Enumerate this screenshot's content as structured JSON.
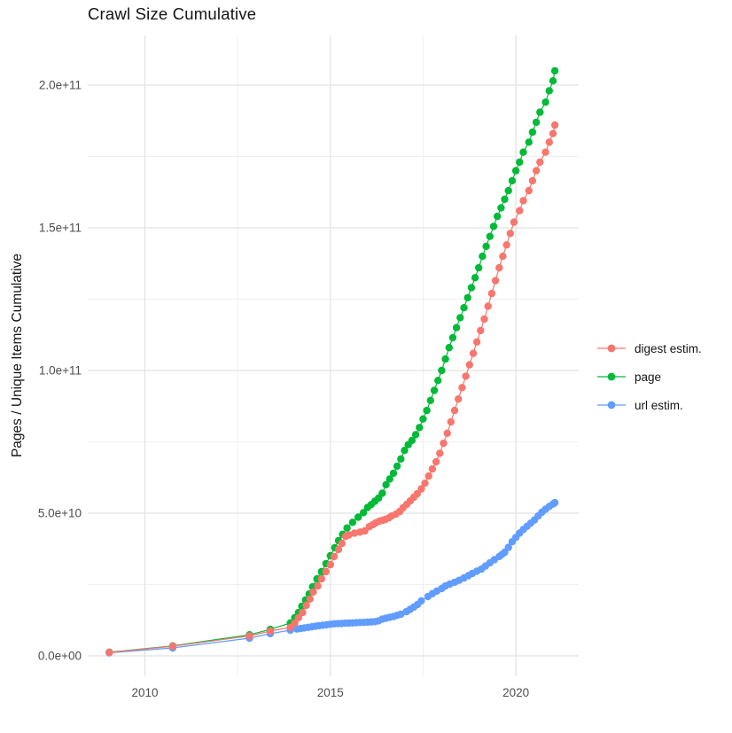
{
  "chart_data": {
    "type": "scatter-line",
    "title": "Crawl Size Cumulative",
    "xlabel": "",
    "ylabel": "Pages / Unique Items Cumulative",
    "value_unit": "billions (1e9) of pages / unique items",
    "x_unit": "year (decimal)",
    "grid": true,
    "legend_position": "right",
    "background_color": "#FFFFFF",
    "major_grid_color": "#E2E2E2",
    "minor_grid_color": "#F0F0F0",
    "axis_text_color": "#4D4D4D",
    "text_color": "#141414",
    "x_range": [
      2008.45,
      2021.72
    ],
    "y_range_billions": [
      -7,
      217
    ],
    "x_ticks": [
      {
        "label": "2010",
        "value": 2010
      },
      {
        "label": "2015",
        "value": 2015
      },
      {
        "label": "2020",
        "value": 2020
      }
    ],
    "x_minor_ticks": [
      2012.5,
      2017.5
    ],
    "y_ticks": [
      {
        "label": "0.0e+00",
        "value": 0
      },
      {
        "label": "5.0e+10",
        "value": 50
      },
      {
        "label": "1.0e+11",
        "value": 100
      },
      {
        "label": "1.5e+11",
        "value": 150
      },
      {
        "label": "2.0e+11",
        "value": 200
      }
    ],
    "y_minor_ticks": [
      25,
      75,
      125,
      175
    ],
    "series": [
      {
        "name": "digest estim.",
        "color": "#F8766D",
        "points": [
          [
            2009.04,
            1.2
          ],
          [
            2010.75,
            3.4
          ],
          [
            2012.82,
            7.0
          ],
          [
            2013.38,
            8.7
          ],
          [
            2013.92,
            10.0
          ],
          [
            2014.04,
            11.5
          ],
          [
            2014.14,
            13.4
          ],
          [
            2014.25,
            15.2
          ],
          [
            2014.35,
            17.7
          ],
          [
            2014.45,
            19.9
          ],
          [
            2014.54,
            22.4
          ],
          [
            2014.66,
            24.5
          ],
          [
            2014.76,
            27.0
          ],
          [
            2014.88,
            29.5
          ],
          [
            2015.0,
            32.0
          ],
          [
            2015.1,
            34.8
          ],
          [
            2015.22,
            37.3
          ],
          [
            2015.31,
            39.4
          ],
          [
            2015.41,
            41.9
          ],
          [
            2015.5,
            42.4
          ],
          [
            2015.65,
            43.0
          ],
          [
            2015.8,
            43.4
          ],
          [
            2015.93,
            43.8
          ],
          [
            2016.05,
            45.3
          ],
          [
            2016.15,
            46.0
          ],
          [
            2016.22,
            46.6
          ],
          [
            2016.32,
            47.2
          ],
          [
            2016.41,
            47.5
          ],
          [
            2016.48,
            47.8
          ],
          [
            2016.58,
            48.4
          ],
          [
            2016.65,
            49.0
          ],
          [
            2016.77,
            49.7
          ],
          [
            2016.87,
            50.6
          ],
          [
            2016.96,
            51.9
          ],
          [
            2017.06,
            53.1
          ],
          [
            2017.15,
            54.3
          ],
          [
            2017.25,
            55.6
          ],
          [
            2017.34,
            56.8
          ],
          [
            2017.45,
            58.5
          ],
          [
            2017.55,
            60.5
          ],
          [
            2017.65,
            63.0
          ],
          [
            2017.75,
            65.5
          ],
          [
            2017.85,
            68.0
          ],
          [
            2017.95,
            71.0
          ],
          [
            2018.05,
            74.5
          ],
          [
            2018.15,
            78.0
          ],
          [
            2018.25,
            82.0
          ],
          [
            2018.35,
            86.0
          ],
          [
            2018.45,
            90.0
          ],
          [
            2018.55,
            94.0
          ],
          [
            2018.65,
            98.0
          ],
          [
            2018.75,
            102.0
          ],
          [
            2018.85,
            106.0
          ],
          [
            2018.95,
            110.0
          ],
          [
            2019.05,
            114.0
          ],
          [
            2019.15,
            118.0
          ],
          [
            2019.25,
            122.5
          ],
          [
            2019.35,
            127.0
          ],
          [
            2019.45,
            131.5
          ],
          [
            2019.55,
            136.0
          ],
          [
            2019.65,
            140.0
          ],
          [
            2019.75,
            144.0
          ],
          [
            2019.85,
            148.0
          ],
          [
            2019.95,
            152.0
          ],
          [
            2020.1,
            156.0
          ],
          [
            2020.2,
            159.5
          ],
          [
            2020.35,
            163.0
          ],
          [
            2020.45,
            166.5
          ],
          [
            2020.55,
            170.0
          ],
          [
            2020.65,
            173.0
          ],
          [
            2020.8,
            176.5
          ],
          [
            2020.9,
            180.0
          ],
          [
            2021.0,
            183.0
          ],
          [
            2021.05,
            186.0
          ]
        ]
      },
      {
        "name": "page",
        "color": "#00BA38",
        "points": [
          [
            2009.04,
            1.3
          ],
          [
            2010.75,
            3.5
          ],
          [
            2012.82,
            7.4
          ],
          [
            2013.38,
            9.3
          ],
          [
            2013.92,
            11.5
          ],
          [
            2014.04,
            13.4
          ],
          [
            2014.14,
            15.2
          ],
          [
            2014.23,
            17.4
          ],
          [
            2014.33,
            19.6
          ],
          [
            2014.43,
            21.7
          ],
          [
            2014.52,
            24.2
          ],
          [
            2014.64,
            27.0
          ],
          [
            2014.76,
            29.5
          ],
          [
            2014.88,
            32.3
          ],
          [
            2015.0,
            35.1
          ],
          [
            2015.12,
            37.9
          ],
          [
            2015.22,
            40.4
          ],
          [
            2015.33,
            42.6
          ],
          [
            2015.45,
            44.8
          ],
          [
            2015.6,
            46.8
          ],
          [
            2015.75,
            48.6
          ],
          [
            2015.89,
            50.2
          ],
          [
            2016.0,
            52.0
          ],
          [
            2016.1,
            53.0
          ],
          [
            2016.2,
            54.2
          ],
          [
            2016.3,
            55.3
          ],
          [
            2016.4,
            57.0
          ],
          [
            2016.5,
            60.0
          ],
          [
            2016.6,
            62.0
          ],
          [
            2016.7,
            64.0
          ],
          [
            2016.8,
            66.5
          ],
          [
            2016.9,
            69.0
          ],
          [
            2017.0,
            72.0
          ],
          [
            2017.1,
            74.0
          ],
          [
            2017.2,
            75.5
          ],
          [
            2017.3,
            77.5
          ],
          [
            2017.4,
            80.0
          ],
          [
            2017.5,
            83.0
          ],
          [
            2017.6,
            86.0
          ],
          [
            2017.7,
            89.5
          ],
          [
            2017.8,
            93.0
          ],
          [
            2017.9,
            96.5
          ],
          [
            2018.0,
            100.0
          ],
          [
            2018.1,
            104.0
          ],
          [
            2018.2,
            108.0
          ],
          [
            2018.3,
            111.5
          ],
          [
            2018.4,
            115.0
          ],
          [
            2018.5,
            118.5
          ],
          [
            2018.6,
            122.0
          ],
          [
            2018.7,
            125.5
          ],
          [
            2018.8,
            129.0
          ],
          [
            2018.9,
            132.5
          ],
          [
            2019.0,
            136.0
          ],
          [
            2019.1,
            140.0
          ],
          [
            2019.2,
            143.5
          ],
          [
            2019.3,
            147.0
          ],
          [
            2019.4,
            150.5
          ],
          [
            2019.5,
            154.0
          ],
          [
            2019.6,
            157.0
          ],
          [
            2019.7,
            160.0
          ],
          [
            2019.8,
            163.0
          ],
          [
            2019.9,
            166.5
          ],
          [
            2020.0,
            170.0
          ],
          [
            2020.1,
            173.0
          ],
          [
            2020.2,
            176.5
          ],
          [
            2020.35,
            180.0
          ],
          [
            2020.45,
            183.5
          ],
          [
            2020.55,
            187.0
          ],
          [
            2020.65,
            190.5
          ],
          [
            2020.8,
            194.0
          ],
          [
            2020.9,
            198.0
          ],
          [
            2021.0,
            201.5
          ],
          [
            2021.05,
            205.0
          ]
        ]
      },
      {
        "name": "url estim.",
        "color": "#619CFF",
        "points": [
          [
            2009.04,
            1.1
          ],
          [
            2010.75,
            2.8
          ],
          [
            2012.82,
            6.2
          ],
          [
            2013.38,
            7.8
          ],
          [
            2013.92,
            9.0
          ],
          [
            2014.1,
            9.4
          ],
          [
            2014.2,
            9.6
          ],
          [
            2014.3,
            9.8
          ],
          [
            2014.4,
            10.0
          ],
          [
            2014.5,
            10.2
          ],
          [
            2014.6,
            10.4
          ],
          [
            2014.7,
            10.6
          ],
          [
            2014.8,
            10.75
          ],
          [
            2014.9,
            10.9
          ],
          [
            2015.0,
            11.1
          ],
          [
            2015.1,
            11.25
          ],
          [
            2015.2,
            11.3
          ],
          [
            2015.3,
            11.35
          ],
          [
            2015.4,
            11.45
          ],
          [
            2015.5,
            11.5
          ],
          [
            2015.6,
            11.55
          ],
          [
            2015.7,
            11.6
          ],
          [
            2015.8,
            11.7
          ],
          [
            2015.9,
            11.75
          ],
          [
            2016.0,
            11.8
          ],
          [
            2016.1,
            11.9
          ],
          [
            2016.2,
            12.0
          ],
          [
            2016.3,
            12.3
          ],
          [
            2016.4,
            12.9
          ],
          [
            2016.5,
            13.2
          ],
          [
            2016.6,
            13.5
          ],
          [
            2016.7,
            13.8
          ],
          [
            2016.8,
            14.2
          ],
          [
            2016.9,
            14.6
          ],
          [
            2017.05,
            15.5
          ],
          [
            2017.15,
            16.3
          ],
          [
            2017.25,
            17.1
          ],
          [
            2017.35,
            18.0
          ],
          [
            2017.45,
            19.3
          ],
          [
            2017.63,
            20.8
          ],
          [
            2017.75,
            21.8
          ],
          [
            2017.87,
            22.7
          ],
          [
            2018.0,
            23.6
          ],
          [
            2018.1,
            24.5
          ],
          [
            2018.22,
            25.2
          ],
          [
            2018.35,
            25.8
          ],
          [
            2018.47,
            26.5
          ],
          [
            2018.6,
            27.3
          ],
          [
            2018.72,
            28.1
          ],
          [
            2018.83,
            28.9
          ],
          [
            2018.95,
            29.7
          ],
          [
            2019.07,
            30.4
          ],
          [
            2019.18,
            31.5
          ],
          [
            2019.3,
            32.6
          ],
          [
            2019.42,
            33.7
          ],
          [
            2019.55,
            34.8
          ],
          [
            2019.62,
            35.5
          ],
          [
            2019.7,
            36.3
          ],
          [
            2019.8,
            38.0
          ],
          [
            2019.9,
            40.0
          ],
          [
            2020.0,
            41.5
          ],
          [
            2020.1,
            43.0
          ],
          [
            2020.2,
            44.3
          ],
          [
            2020.3,
            45.4
          ],
          [
            2020.4,
            46.5
          ],
          [
            2020.5,
            47.6
          ],
          [
            2020.6,
            49.0
          ],
          [
            2020.7,
            50.3
          ],
          [
            2020.8,
            51.4
          ],
          [
            2020.9,
            52.4
          ],
          [
            2021.0,
            53.2
          ],
          [
            2021.05,
            53.7
          ]
        ]
      }
    ]
  }
}
